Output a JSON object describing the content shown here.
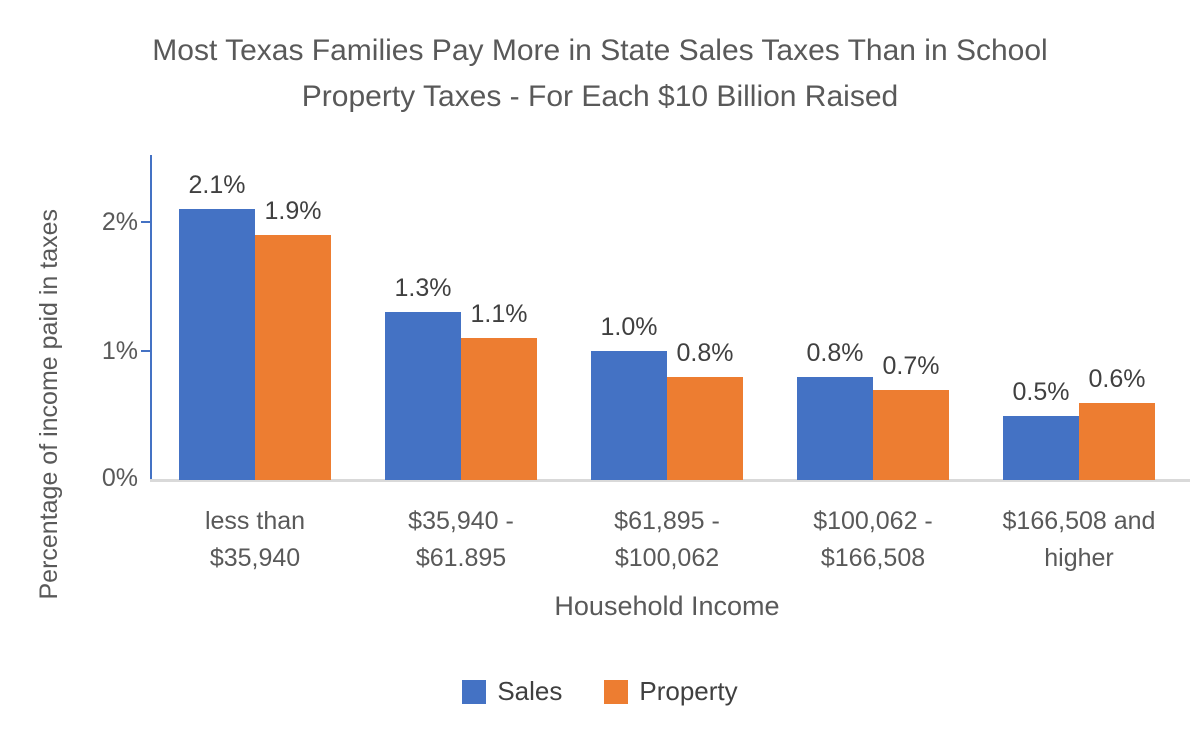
{
  "title": "Most Texas Families Pay More in State Sales Taxes Than in School Property Taxes - For Each $10 Billion Raised",
  "y_axis": {
    "title": "Percentage of income paid in taxes",
    "tick_labels": [
      "0%",
      "1%",
      "2%"
    ]
  },
  "x_axis": {
    "title": "Household Income"
  },
  "legend": {
    "position": "bottom",
    "items": [
      {
        "label": "Sales",
        "color": "#4472c4"
      },
      {
        "label": "Property",
        "color": "#ed7d31"
      }
    ]
  },
  "colors": {
    "sales_bar": "#4472c4",
    "property_bar": "#ed7d31",
    "axis_line": "#4472c4",
    "baseline": "#d9d9d9",
    "title_text": "#595959",
    "axis_text": "#595959",
    "data_label_text": "#404040"
  },
  "chart_data": {
    "type": "bar",
    "title": "Most Texas Families Pay More in State Sales Taxes Than in School Property Taxes - For Each $10 Billion Raised",
    "xlabel": "Household Income",
    "ylabel": "Percentage of income paid in taxes",
    "categories": [
      "less than $35,940",
      "$35,940 - $61.895",
      "$61,895 - $100,062",
      "$100,062 - $166,508",
      "$166,508 and higher"
    ],
    "categories_lines": [
      [
        "less than",
        "$35,940"
      ],
      [
        "$35,940 -",
        "$61.895"
      ],
      [
        "$61,895 -",
        "$100,062"
      ],
      [
        "$100,062 -",
        "$166,508"
      ],
      [
        "$166,508 and",
        "higher"
      ]
    ],
    "series": [
      {
        "name": "Sales",
        "color": "#4472c4",
        "values": [
          2.1,
          1.3,
          1.0,
          0.8,
          0.5
        ],
        "labels": [
          "2.1%",
          "1.3%",
          "1.0%",
          "0.8%",
          "0.5%"
        ]
      },
      {
        "name": "Property",
        "color": "#ed7d31",
        "values": [
          1.9,
          1.1,
          0.8,
          0.7,
          0.6
        ],
        "labels": [
          "1.9%",
          "1.1%",
          "0.8%",
          "0.7%",
          "0.6%"
        ]
      }
    ],
    "ylim": [
      0,
      2.52
    ],
    "yticks": [
      0,
      1,
      2
    ],
    "ytick_labels": [
      "0%",
      "1%",
      "2%"
    ],
    "grid": false,
    "legend_position": "bottom"
  }
}
